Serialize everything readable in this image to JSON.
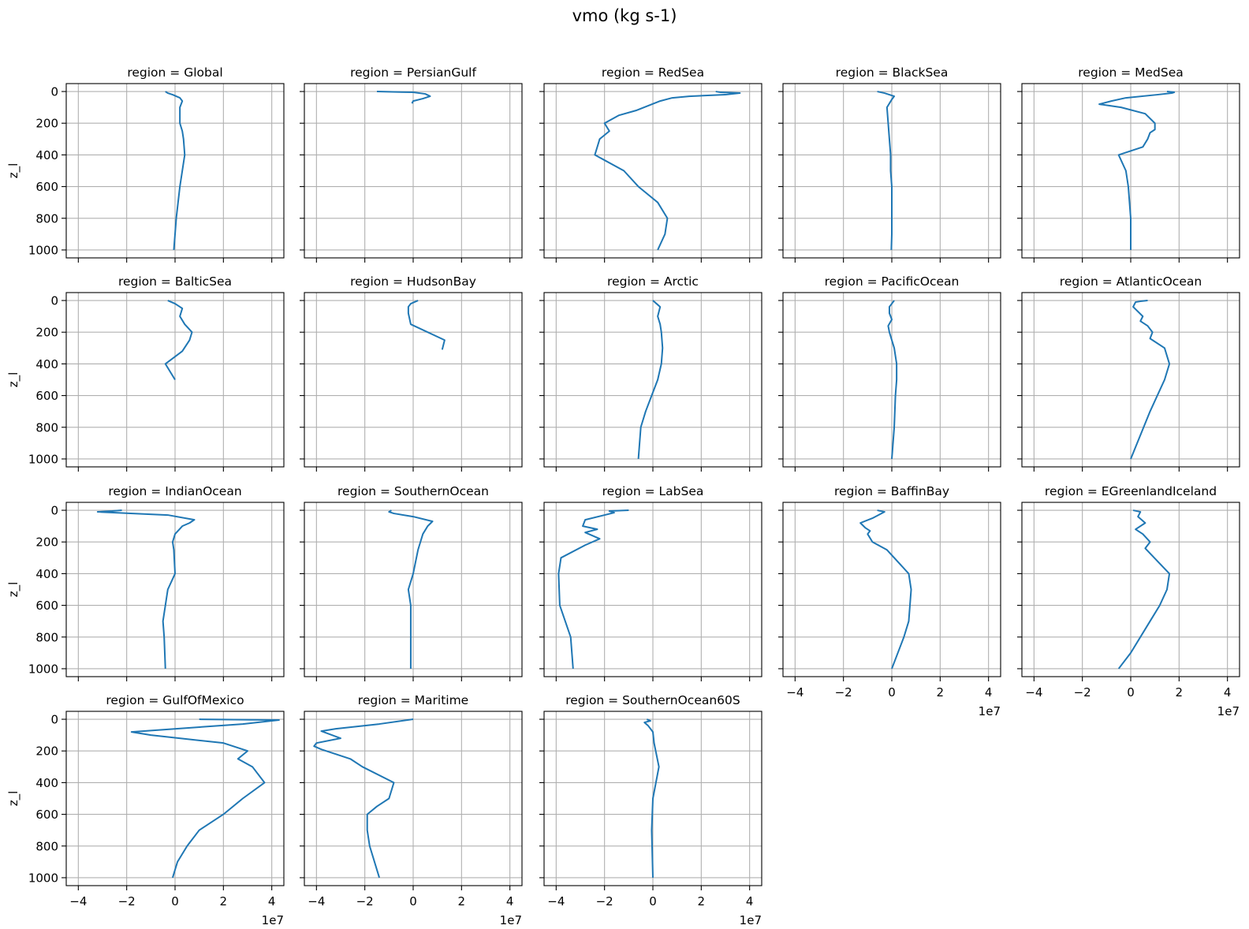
{
  "figure": {
    "suptitle": "vmo (kg s-1)"
  },
  "chart_data": {
    "type": "line",
    "title": "vmo (kg s-1)",
    "xlim": [
      -4.5,
      4.5
    ],
    "ylim": [
      1050,
      -50
    ],
    "y_inverted": true,
    "xticks": [
      -4,
      -2,
      0,
      2,
      4
    ],
    "xtick_labels": [
      "−4",
      "−2",
      "0",
      "2",
      "4"
    ],
    "x_offset_label": "1e7",
    "yticks": [
      0,
      200,
      400,
      600,
      800,
      1000
    ],
    "ytick_labels": [
      "0",
      "200",
      "400",
      "600",
      "800",
      "1000"
    ],
    "ylabel": "z_l",
    "grid": true,
    "line_color": "#1f77b4",
    "x_unit": "1e7 kg s-1",
    "panels": [
      {
        "title": "region = Global",
        "x": [
          -0.4,
          -0.3,
          -0.1,
          0.2,
          0.3,
          0.25,
          0.2,
          0.2,
          0.2,
          0.3,
          0.35,
          0.4,
          0.3,
          0.2,
          0.05,
          -0.05
        ],
        "z": [
          0,
          10,
          20,
          40,
          60,
          80,
          100,
          150,
          200,
          250,
          300,
          400,
          500,
          600,
          800,
          1000
        ]
      },
      {
        "title": "region = PersianGulf",
        "x": [
          -1.5,
          0.0,
          0.5,
          0.7,
          0.4,
          0.0,
          -0.05
        ],
        "z": [
          0,
          5,
          15,
          30,
          45,
          60,
          75
        ]
      },
      {
        "title": "region = RedSea",
        "x": [
          2.6,
          2.8,
          3.6,
          3.0,
          1.5,
          0.8,
          0.3,
          -0.7,
          -1.4,
          -2.0,
          -1.8,
          -2.2,
          -2.3,
          -2.4,
          -1.2,
          -0.6,
          0.2,
          0.6,
          0.5,
          0.2
        ],
        "z": [
          0,
          5,
          10,
          20,
          30,
          40,
          60,
          120,
          150,
          200,
          250,
          300,
          350,
          400,
          500,
          600,
          700,
          800,
          900,
          1000
        ]
      },
      {
        "title": "region = BlackSea",
        "x": [
          -0.6,
          -0.3,
          0.1,
          0.0,
          -0.2,
          -0.15,
          -0.1,
          -0.05,
          -0.05,
          0.0,
          0.0,
          0.0,
          -0.02
        ],
        "z": [
          0,
          10,
          30,
          50,
          100,
          200,
          300,
          400,
          500,
          600,
          800,
          900,
          1000
        ]
      },
      {
        "title": "region = MedSea",
        "x": [
          1.5,
          1.8,
          1.7,
          1.1,
          -0.2,
          -0.8,
          -1.3,
          -0.4,
          0.6,
          1.0,
          1.0,
          0.8,
          0.7,
          0.5,
          -0.5,
          -0.2,
          -0.1,
          0.0,
          0.0
        ],
        "z": [
          0,
          5,
          10,
          20,
          40,
          60,
          80,
          100,
          140,
          200,
          240,
          260,
          300,
          350,
          400,
          500,
          600,
          800,
          1000
        ]
      },
      {
        "title": "region = BalticSea",
        "x": [
          -0.3,
          0.0,
          0.3,
          0.2,
          0.4,
          0.7,
          0.6,
          0.3,
          -0.4,
          0.0
        ],
        "z": [
          0,
          20,
          50,
          100,
          150,
          200,
          250,
          320,
          400,
          500
        ]
      },
      {
        "title": "region = HudsonBay",
        "x": [
          0.2,
          -0.1,
          -0.2,
          -0.2,
          -0.1,
          1.3,
          1.2
        ],
        "z": [
          0,
          20,
          40,
          80,
          150,
          250,
          310
        ]
      },
      {
        "title": "region = Arctic",
        "x": [
          0.0,
          0.15,
          0.3,
          0.2,
          0.3,
          0.35,
          0.4,
          0.35,
          0.2,
          -0.3,
          -0.5,
          -0.55,
          -0.6
        ],
        "z": [
          0,
          20,
          40,
          100,
          150,
          200,
          300,
          400,
          500,
          700,
          800,
          900,
          1000
        ]
      },
      {
        "title": "region = PacificOcean",
        "x": [
          0.1,
          0.0,
          -0.1,
          -0.1,
          0.0,
          -0.15,
          -0.1,
          0.1,
          0.2,
          0.2,
          0.15,
          0.1,
          0.0
        ],
        "z": [
          0,
          20,
          40,
          80,
          120,
          160,
          200,
          300,
          400,
          500,
          600,
          800,
          1000
        ]
      },
      {
        "title": "region = AtlanticOcean",
        "x": [
          0.7,
          0.4,
          0.2,
          0.1,
          0.5,
          0.4,
          0.7,
          0.9,
          0.8,
          1.4,
          1.6,
          1.4,
          0.8,
          0.0
        ],
        "z": [
          0,
          5,
          10,
          40,
          100,
          130,
          160,
          200,
          240,
          300,
          400,
          500,
          700,
          1000
        ]
      },
      {
        "title": "region = IndianOcean",
        "x": [
          -2.2,
          -2.6,
          -3.2,
          -0.3,
          0.8,
          0.6,
          0.3,
          0.0,
          -0.1,
          -0.05,
          0.0,
          -0.3,
          -0.5,
          -0.45,
          -0.4
        ],
        "z": [
          0,
          5,
          10,
          30,
          60,
          80,
          100,
          150,
          200,
          250,
          400,
          500,
          700,
          800,
          1000
        ]
      },
      {
        "title": "region = SouthernOcean",
        "x": [
          -0.9,
          -1.0,
          -0.8,
          0.0,
          0.8,
          0.6,
          0.4,
          0.2,
          0.0,
          -0.2,
          -0.1,
          -0.1
        ],
        "z": [
          0,
          10,
          20,
          40,
          70,
          100,
          150,
          250,
          400,
          500,
          600,
          1000
        ]
      },
      {
        "title": "region = LabSea",
        "x": [
          -1.0,
          -1.8,
          -1.6,
          -2.8,
          -2.9,
          -2.3,
          -2.8,
          -2.2,
          -2.8,
          -3.8,
          -3.9,
          -3.85,
          -3.4,
          -3.3
        ],
        "z": [
          0,
          5,
          15,
          60,
          100,
          120,
          140,
          180,
          220,
          300,
          400,
          600,
          800,
          1000
        ]
      },
      {
        "title": "region = BaffinBay",
        "x": [
          -0.6,
          -0.3,
          -0.8,
          -1.3,
          -1.1,
          -0.9,
          -1.0,
          -0.8,
          -0.2,
          0.7,
          0.8,
          0.7,
          0.5,
          0.0
        ],
        "z": [
          0,
          10,
          50,
          80,
          110,
          130,
          150,
          200,
          250,
          400,
          500,
          700,
          800,
          1000
        ]
      },
      {
        "title": "region = EGreenlandIceland",
        "x": [
          0.1,
          0.4,
          0.3,
          0.6,
          0.2,
          0.5,
          0.8,
          0.6,
          1.6,
          1.5,
          1.2,
          0.8,
          0.0,
          -0.5
        ],
        "z": [
          0,
          10,
          40,
          80,
          120,
          150,
          200,
          240,
          400,
          500,
          600,
          700,
          900,
          1000
        ]
      },
      {
        "title": "region = GulfOfMexico",
        "x": [
          1.0,
          4.3,
          2.8,
          -1.8,
          -1.0,
          2.0,
          3.0,
          2.6,
          3.2,
          3.7,
          2.8,
          2.0,
          1.0,
          0.5,
          0.1,
          -0.1
        ],
        "z": [
          0,
          5,
          30,
          80,
          100,
          150,
          200,
          250,
          300,
          400,
          500,
          600,
          700,
          800,
          900,
          1000
        ]
      },
      {
        "title": "region = Maritime",
        "x": [
          0.0,
          -1.4,
          -3.2,
          -3.8,
          -3.0,
          -4.0,
          -4.1,
          -3.8,
          -2.6,
          -2.1,
          -0.8,
          -1.0,
          -1.5,
          -1.9,
          -1.9,
          -1.8,
          -1.4
        ],
        "z": [
          0,
          30,
          60,
          75,
          120,
          150,
          170,
          190,
          250,
          300,
          400,
          500,
          550,
          600,
          700,
          800,
          1000
        ]
      },
      {
        "title": "region = SouthernOcean60S",
        "x": [
          -0.25,
          -0.1,
          -0.35,
          -0.2,
          0.0,
          0.05,
          0.25,
          0.0,
          -0.05,
          0.0
        ],
        "z": [
          0,
          10,
          20,
          40,
          80,
          150,
          300,
          500,
          700,
          1000
        ]
      }
    ]
  }
}
